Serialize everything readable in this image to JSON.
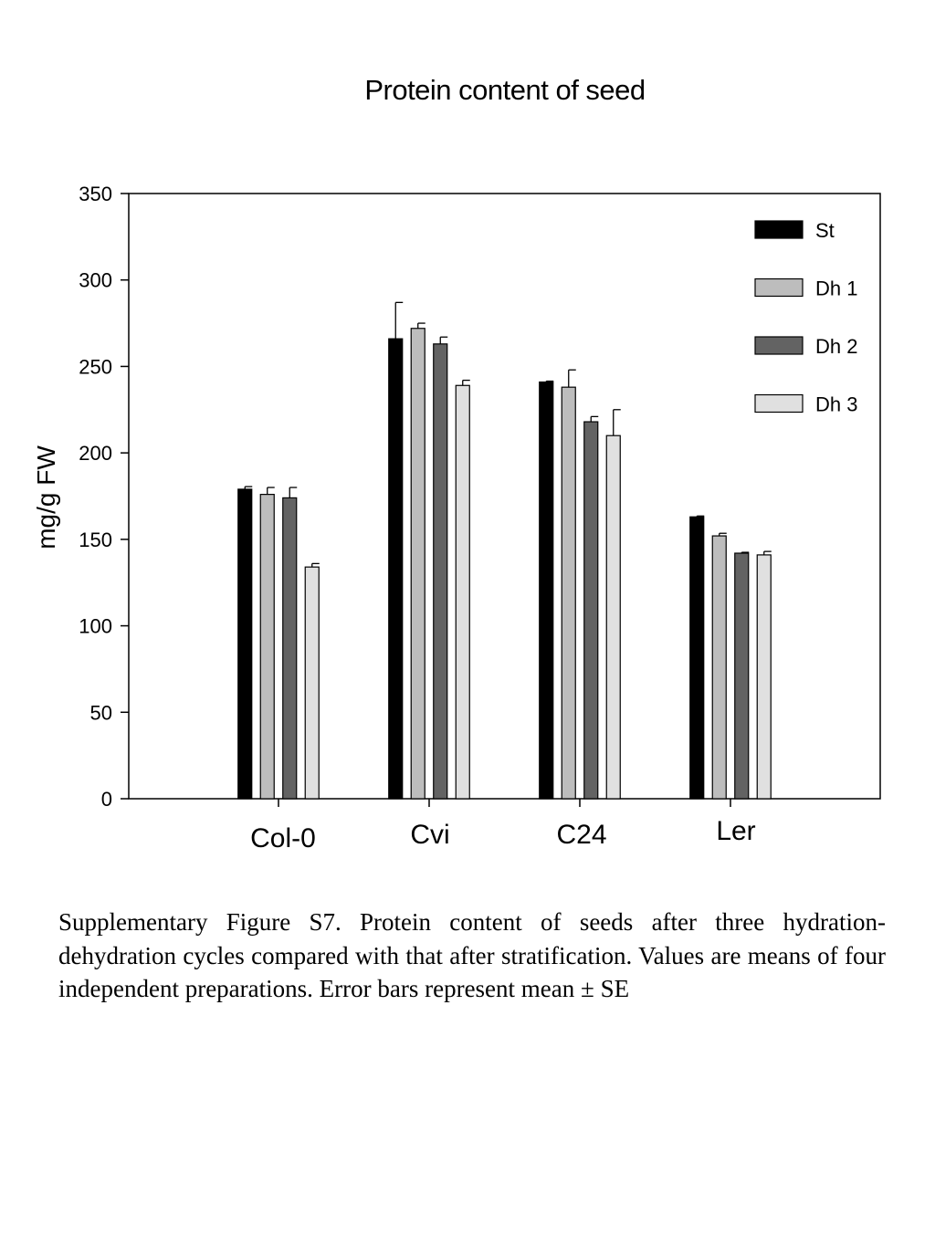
{
  "chart_data": {
    "type": "bar",
    "title": "Protein content of seed",
    "xlabel": "",
    "ylabel": "mg/g FW",
    "ylim": [
      0,
      350
    ],
    "yticks": [
      "0",
      "50",
      "100",
      "150",
      "200",
      "250",
      "300",
      "350"
    ],
    "categories": [
      "Col-0",
      "Cvi",
      "C24",
      "Ler"
    ],
    "grid": false,
    "legend_position": "top-right",
    "series": [
      {
        "name": "St",
        "color": "#000000",
        "values": [
          179,
          266,
          241,
          163
        ],
        "errors": [
          1.5,
          21,
          0.5,
          0.5
        ]
      },
      {
        "name": "Dh 1",
        "color": "#bdbdbd",
        "values": [
          176,
          272,
          238,
          152
        ],
        "errors": [
          4,
          3,
          10,
          1.5
        ]
      },
      {
        "name": "Dh 2",
        "color": "#636363",
        "values": [
          174,
          263,
          218,
          142
        ],
        "errors": [
          6,
          4,
          3,
          0.5
        ]
      },
      {
        "name": "Dh 3",
        "color": "#e0e0e0",
        "values": [
          134,
          239,
          210,
          141
        ],
        "errors": [
          2,
          3,
          15,
          2
        ]
      }
    ]
  },
  "caption": "Supplementary Figure S7. Protein content of seeds after three hydration-dehydration cycles compared with that after stratification. Values are means of four independent preparations. Error bars represent mean ± SE"
}
